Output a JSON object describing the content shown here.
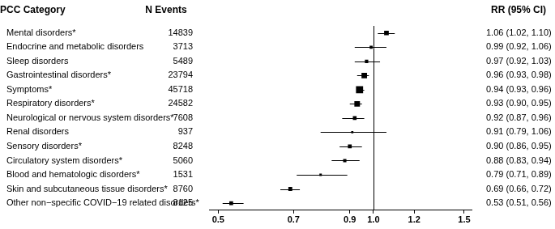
{
  "chart_data": {
    "type": "forest",
    "headers": {
      "category": "PCC Category",
      "n_events": "N Events",
      "value_labels": "RR (95% CI)"
    },
    "categories": [
      "Mental disorders*",
      "Endocrine and metabolic disorders",
      "Sleep disorders",
      "Gastrointestinal disorders*",
      "Symptoms*",
      "Respiratory disorders*",
      "Neurological or nervous system disorders*",
      "Renal disorders",
      "Sensory disorders*",
      "Circulatory system disorders*",
      "Blood and hematologic disorders*",
      "Skin and subcutaneous tissue disorders*",
      "Other non−specific COVID−19 related disorders*"
    ],
    "n_events": [
      14839,
      3713,
      5489,
      23794,
      45718,
      24582,
      7608,
      937,
      8248,
      5060,
      1531,
      8760,
      8125
    ],
    "values": [
      1.06,
      0.99,
      0.97,
      0.96,
      0.94,
      0.93,
      0.92,
      0.91,
      0.9,
      0.88,
      0.79,
      0.69,
      0.53
    ],
    "ci_lower": [
      1.02,
      0.92,
      0.92,
      0.93,
      0.93,
      0.9,
      0.87,
      0.79,
      0.86,
      0.83,
      0.71,
      0.66,
      0.51
    ],
    "ci_upper": [
      1.1,
      1.06,
      1.03,
      0.98,
      0.96,
      0.95,
      0.96,
      1.06,
      0.95,
      0.94,
      0.89,
      0.72,
      0.56
    ],
    "value_labels": [
      "1.06 (1.02, 1.10)",
      "0.99 (0.92, 1.06)",
      "0.97 (0.92, 1.03)",
      "0.96 (0.93, 0.98)",
      "0.94 (0.93, 0.96)",
      "0.93 (0.90, 0.95)",
      "0.92 (0.87, 0.96)",
      "0.91 (0.79, 1.06)",
      "0.90 (0.86, 0.95)",
      "0.88 (0.83, 0.94)",
      "0.79 (0.71, 0.89)",
      "0.69 (0.66, 0.72)",
      "0.53 (0.51, 0.56)"
    ],
    "reference_line": 1,
    "xlim": [
      0.48,
      1.55
    ],
    "xticks": [
      0.5,
      0.7,
      0.9,
      {
        "value": 1,
        "label": "1.0"
      },
      1.2,
      1.5
    ],
    "log": "x",
    "grid": false,
    "marker": "square",
    "color": "#000000"
  }
}
